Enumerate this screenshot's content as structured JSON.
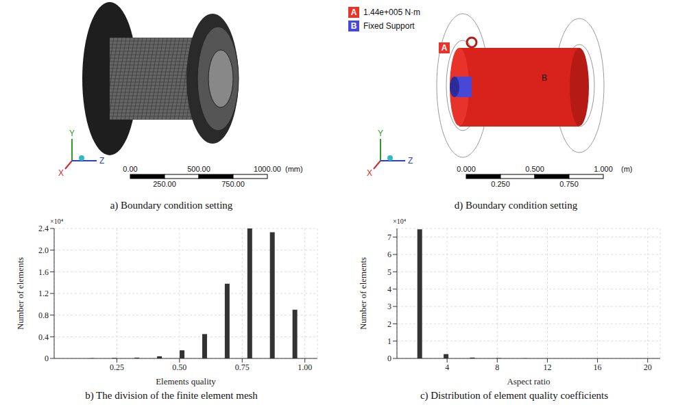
{
  "figure": {
    "panels": [
      {
        "id": "a",
        "caption": "a) Boundary condition setting",
        "axes_triad": [
          "X",
          "Y",
          "Z"
        ],
        "scale_bar": {
          "top": [
            "0.00",
            "500.00",
            "1000.00"
          ],
          "bottom": [
            "250.00",
            "750.00"
          ],
          "unit": "(mm)"
        }
      },
      {
        "id": "d",
        "caption": "d) Boundary condition setting",
        "axes_triad": [
          "X",
          "Y",
          "Z"
        ],
        "legend": [
          {
            "letter": "A",
            "label": "1.44e+005 N·m",
            "color": "#e8332a"
          },
          {
            "letter": "B",
            "label": "Fixed Support",
            "color": "#4848d8"
          }
        ],
        "scale_bar": {
          "top": [
            "0.000",
            "0.500",
            "1.000"
          ],
          "bottom": [
            "0.250",
            "0.750"
          ],
          "unit": "(m)"
        }
      }
    ]
  },
  "chart_data": [
    {
      "type": "bar",
      "title": "b) The division of the finite element mesh",
      "x_label": "Elements quality",
      "y_label": "Number of elements",
      "annotations": [
        "×10⁴"
      ],
      "x": [
        0.15,
        0.24,
        0.33,
        0.42,
        0.51,
        0.6,
        0.69,
        0.78,
        0.87,
        0.96
      ],
      "values": [
        0.005,
        0.01,
        0.015,
        0.04,
        0.15,
        0.45,
        1.38,
        2.4,
        2.33,
        0.9
      ],
      "color": "#333333",
      "xlim": [
        0,
        1.05
      ],
      "xticks": [
        0.25,
        {
          "value": 0.5,
          "label": "0.50"
        },
        0.75,
        {
          "value": 1,
          "label": "1.00"
        }
      ],
      "ylim": [
        0,
        2.4
      ],
      "yticks": [
        0,
        0.4,
        0.8,
        1.2,
        1.6,
        {
          "value": 2,
          "label": "2.0"
        },
        2.4
      ],
      "grid": true
    },
    {
      "type": "bar",
      "title": "c) Distribution of element quality coefficients",
      "x_label": "Aspect ratio",
      "y_label": "Number of elements",
      "annotations": [
        "×10⁴"
      ],
      "x": [
        1.8,
        3.9,
        6.0,
        8.1,
        10.2
      ],
      "values": [
        7.45,
        0.25,
        0.05,
        0.02,
        0.01
      ],
      "color": "#333333",
      "xlim": [
        0,
        21
      ],
      "xticks": [
        4,
        8,
        12,
        16,
        20
      ],
      "ylim": [
        0,
        7.5
      ],
      "yticks": [
        0,
        1,
        2,
        3,
        4,
        5,
        6,
        7
      ],
      "grid": true
    }
  ]
}
